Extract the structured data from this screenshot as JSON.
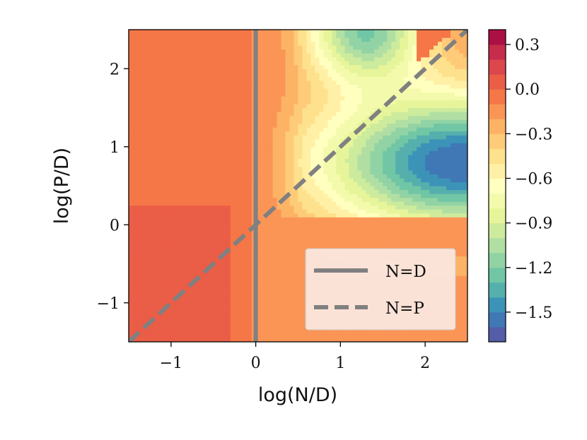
{
  "chart_data": {
    "type": "heatmap",
    "subtype": "filled-contour",
    "title": "",
    "xlabel": "log(N/D)",
    "ylabel": "log(P/D)",
    "xlim": [
      -1.5,
      2.5
    ],
    "ylim": [
      -1.5,
      2.5
    ],
    "x_ticks": [
      -1,
      0,
      1,
      2
    ],
    "y_ticks": [
      -1,
      0,
      1,
      2
    ],
    "x_tick_labels": [
      "−1",
      "0",
      "1",
      "2"
    ],
    "y_tick_labels": [
      "−1",
      "0",
      "1",
      "2"
    ],
    "grid": false,
    "colormap": "Spectral",
    "colorbar": {
      "min": -1.7,
      "max": 0.4,
      "ticks": [
        0.3,
        0.0,
        -0.3,
        -0.6,
        -0.9,
        -1.2,
        -1.5
      ],
      "tick_labels": [
        "0.3",
        "0.0",
        "−0.3",
        "−0.6",
        "−0.9",
        "−1.2",
        "−1.5"
      ],
      "level_step": 0.1
    },
    "field_description_values": {
      "upper_left_region": -0.1,
      "lower_left_region": 0.0,
      "strip_near_N_eq_D": -0.1,
      "minimum_value": -1.65,
      "minimum_location": [
        2.45,
        0.8
      ],
      "upper_ridge_location": [
        1.3,
        2.5
      ],
      "upper_ridge_value": -1.15
    },
    "lines": [
      {
        "name": "N=D",
        "style": "solid",
        "color": "#808080",
        "points": [
          [
            0,
            -1.5
          ],
          [
            0,
            2.5
          ]
        ]
      },
      {
        "name": "N=P",
        "style": "dashed",
        "color": "#808080",
        "points": [
          [
            -1.5,
            -1.5
          ],
          [
            2.5,
            2.5
          ]
        ]
      }
    ],
    "legend": {
      "placement": "lower-right",
      "entries": [
        {
          "label": "N=D",
          "style": "solid"
        },
        {
          "label": "N=P",
          "style": "dashed"
        }
      ]
    }
  }
}
